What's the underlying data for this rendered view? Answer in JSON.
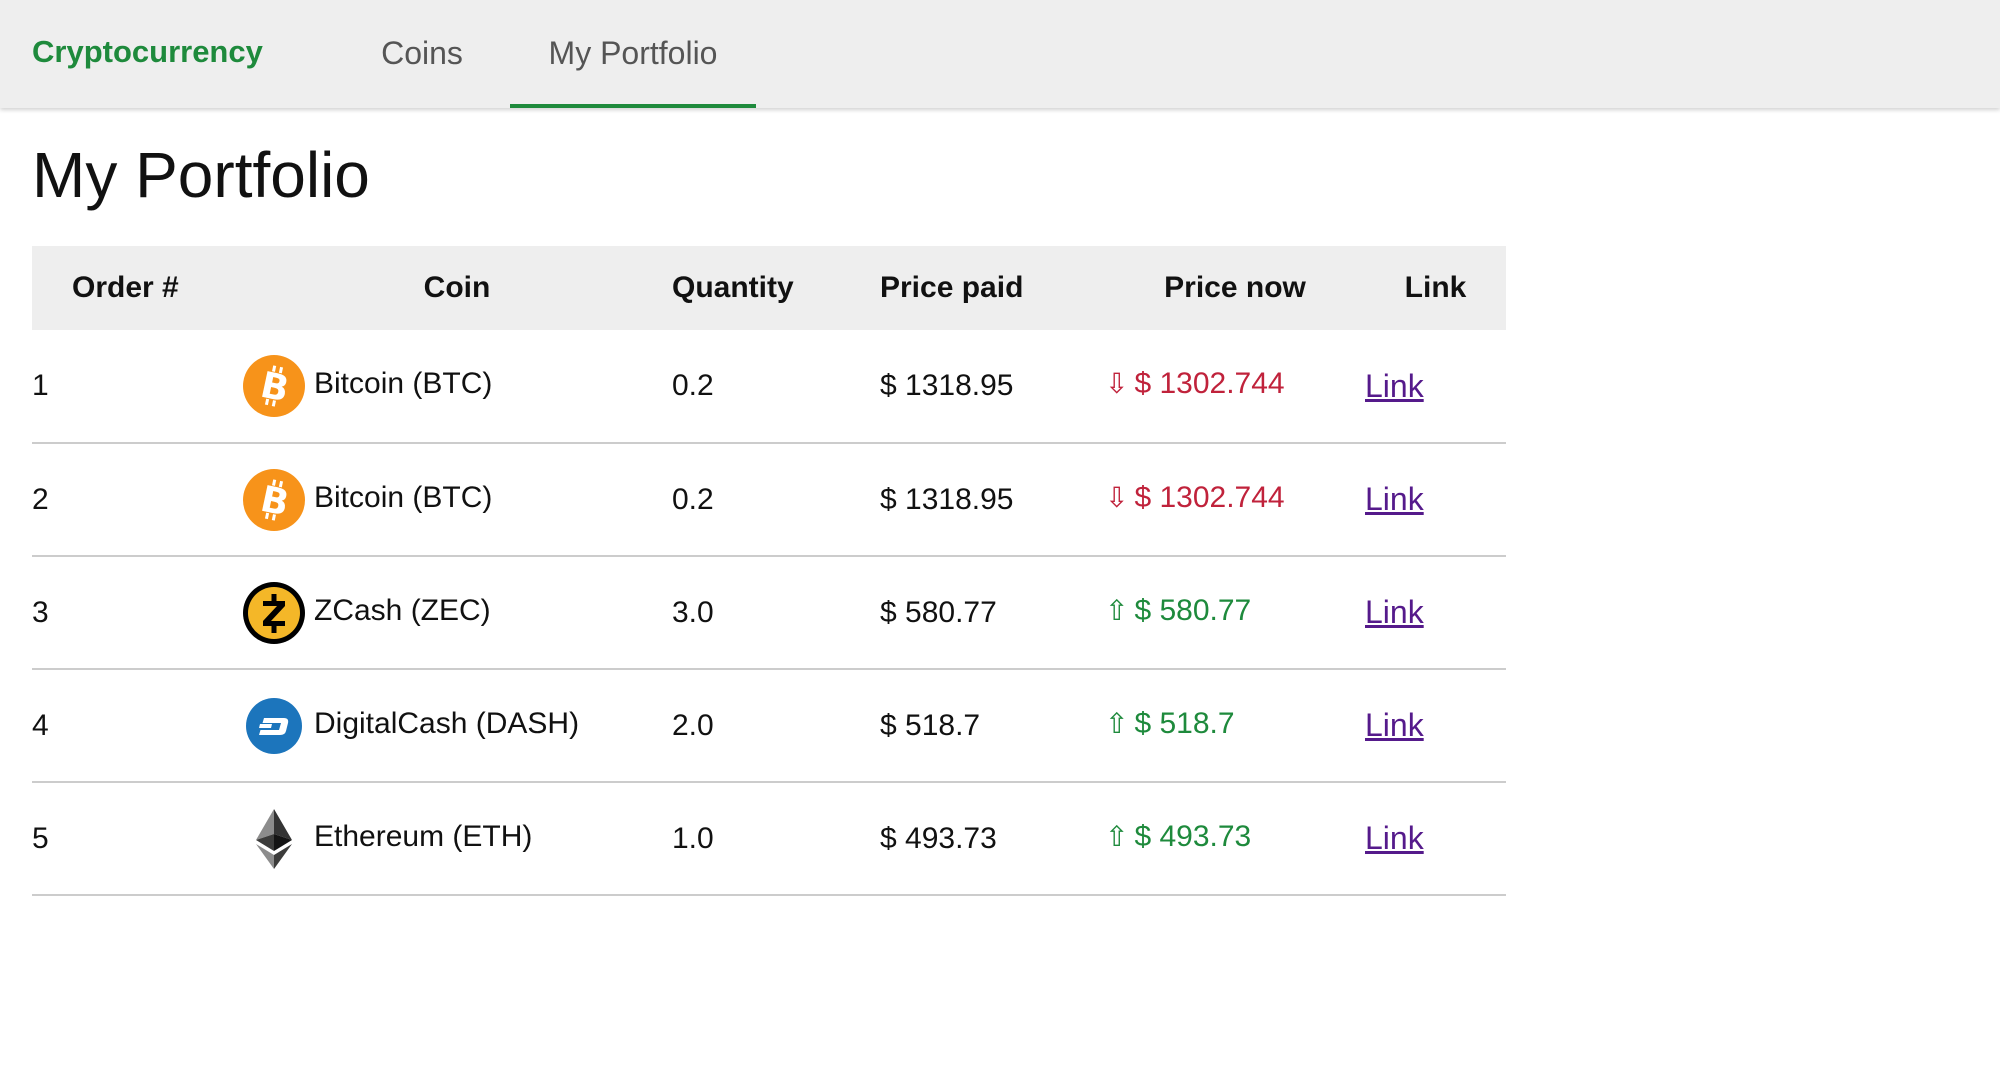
{
  "nav": {
    "brand": "Cryptocurrency",
    "tabs": [
      {
        "label": "Coins",
        "active": false
      },
      {
        "label": "My Portfolio",
        "active": true
      }
    ]
  },
  "page": {
    "title": "My Portfolio"
  },
  "colors": {
    "brand": "#1e8a3c",
    "down": "#c0223b",
    "up": "#1e8a3c",
    "link": "#551a8b"
  },
  "table": {
    "headers": [
      "Order #",
      "Coin",
      "Quantity",
      "Price paid",
      "Price now",
      "Link"
    ],
    "rows": [
      {
        "order": "1",
        "coin": "Bitcoin (BTC)",
        "icon": "bitcoin-icon",
        "quantity": "0.2",
        "price_paid": "$ 1318.95",
        "trend": "down",
        "arrow": "⇩",
        "price_now": "$ 1302.744",
        "link": "Link"
      },
      {
        "order": "2",
        "coin": "Bitcoin (BTC)",
        "icon": "bitcoin-icon",
        "quantity": "0.2",
        "price_paid": "$ 1318.95",
        "trend": "down",
        "arrow": "⇩",
        "price_now": "$ 1302.744",
        "link": "Link"
      },
      {
        "order": "3",
        "coin": "ZCash (ZEC)",
        "icon": "zcash-icon",
        "quantity": "3.0",
        "price_paid": "$ 580.77",
        "trend": "up",
        "arrow": "⇧",
        "price_now": "$ 580.77",
        "link": "Link"
      },
      {
        "order": "4",
        "coin": "DigitalCash (DASH)",
        "icon": "dash-icon",
        "quantity": "2.0",
        "price_paid": "$ 518.7",
        "trend": "up",
        "arrow": "⇧",
        "price_now": "$ 518.7",
        "link": "Link"
      },
      {
        "order": "5",
        "coin": "Ethereum (ETH)",
        "icon": "ethereum-icon",
        "quantity": "1.0",
        "price_paid": "$ 493.73",
        "trend": "up",
        "arrow": "⇧",
        "price_now": "$ 493.73",
        "link": "Link"
      }
    ]
  }
}
